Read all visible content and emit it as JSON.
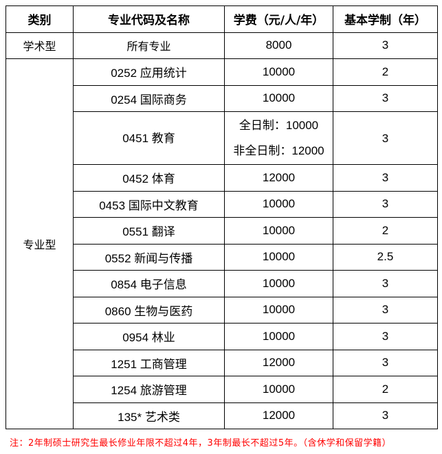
{
  "headers": [
    "类别",
    "专业代码及名称",
    "学费（元/人/年）",
    "基本学制（年）"
  ],
  "academic": {
    "category": "学术型",
    "major": "所有专业",
    "fee": "8000",
    "years": "3"
  },
  "professional": {
    "category": "专业型",
    "rows": [
      {
        "major": "0252 应用统计",
        "fee": "10000",
        "years": "2"
      },
      {
        "major": "0254 国际商务",
        "fee": "10000",
        "years": "3"
      },
      {
        "major": "0451 教育",
        "fee_full": "全日制：10000",
        "fee_part": "非全日制：12000",
        "years": "3"
      },
      {
        "major": "0452 体育",
        "fee": "12000",
        "years": "3"
      },
      {
        "major": "0453 国际中文教育",
        "fee": "10000",
        "years": "3"
      },
      {
        "major": "0551 翻译",
        "fee": "10000",
        "years": "2"
      },
      {
        "major": "0552 新闻与传播",
        "fee": "10000",
        "years": "2.5"
      },
      {
        "major": "0854 电子信息",
        "fee": "10000",
        "years": "3"
      },
      {
        "major": "0860 生物与医药",
        "fee": "10000",
        "years": "3"
      },
      {
        "major": "0954 林业",
        "fee": "10000",
        "years": "3"
      },
      {
        "major": "1251 工商管理",
        "fee": "12000",
        "years": "3"
      },
      {
        "major": "1254 旅游管理",
        "fee": "10000",
        "years": "2"
      },
      {
        "major": "135* 艺术类",
        "fee": "12000",
        "years": "3"
      }
    ]
  },
  "note": "注：2年制硕士研究生最长修业年限不超过4年，3年制最长不超过5年。（含休学和保留学籍）",
  "colors": {
    "note": "#ff0000",
    "border": "#000000"
  }
}
